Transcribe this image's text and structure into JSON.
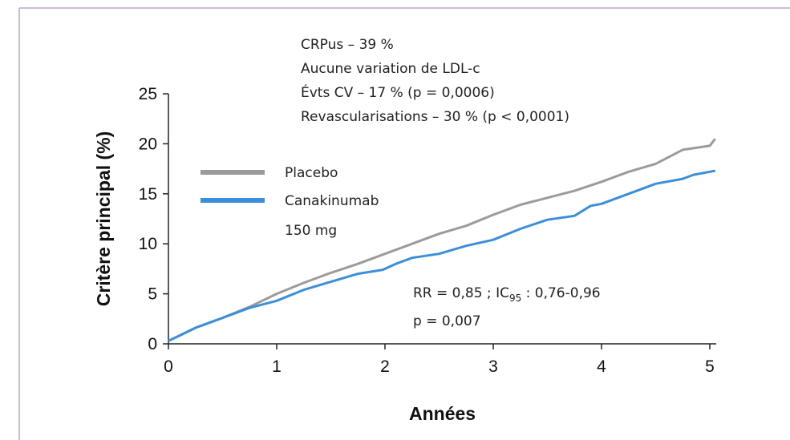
{
  "chart_data": {
    "type": "line",
    "xlabel": "Années",
    "ylabel": "Critère principal (%)",
    "annotations": [
      "CRPus – 39 %",
      "Aucune variation de LDL-c",
      "Évts CV – 17 % (p = 0,0006)",
      "Revascularisations – 30 % (p < 0,0001)"
    ],
    "stats": {
      "text": "RR = 0,85 ; IC",
      "sub": "95",
      "after": " : 0,76-0,96",
      "p": "p = 0,007"
    },
    "xlim": [
      0,
      5.06
    ],
    "xticks": [
      0,
      1,
      2,
      3,
      4,
      5
    ],
    "ylim": [
      0,
      25
    ],
    "yticks": [
      0,
      5,
      10,
      15,
      20,
      25
    ],
    "series": [
      {
        "name": "Placebo",
        "color": "#9b9b9b",
        "x": [
          0,
          0.1,
          0.25,
          0.5,
          0.75,
          1.0,
          1.25,
          1.5,
          1.75,
          2.0,
          2.25,
          2.5,
          2.75,
          3.0,
          3.25,
          3.5,
          3.75,
          4.0,
          4.25,
          4.5,
          4.75,
          5.0,
          5.05
        ],
        "values": [
          0.3,
          0.8,
          1.6,
          2.6,
          3.7,
          5.0,
          6.1,
          7.1,
          8.0,
          9.0,
          10.0,
          11.0,
          11.8,
          12.9,
          13.9,
          14.6,
          15.3,
          16.2,
          17.2,
          18.0,
          19.4,
          19.8,
          20.5
        ]
      },
      {
        "name": "Canakinumab 150 mg",
        "color": "#3b8fd8",
        "x": [
          0,
          0.25,
          0.5,
          0.75,
          1.0,
          1.25,
          1.5,
          1.75,
          1.98,
          2.1,
          2.25,
          2.5,
          2.75,
          3.0,
          3.25,
          3.5,
          3.75,
          3.9,
          4.0,
          4.25,
          4.5,
          4.75,
          4.85,
          5.0,
          5.05
        ],
        "values": [
          0.3,
          1.6,
          2.6,
          3.6,
          4.3,
          5.4,
          6.2,
          7.0,
          7.4,
          8.0,
          8.6,
          9.0,
          9.8,
          10.4,
          11.5,
          12.4,
          12.8,
          13.8,
          14.0,
          15.0,
          16.0,
          16.5,
          16.9,
          17.2,
          17.3
        ]
      }
    ]
  }
}
